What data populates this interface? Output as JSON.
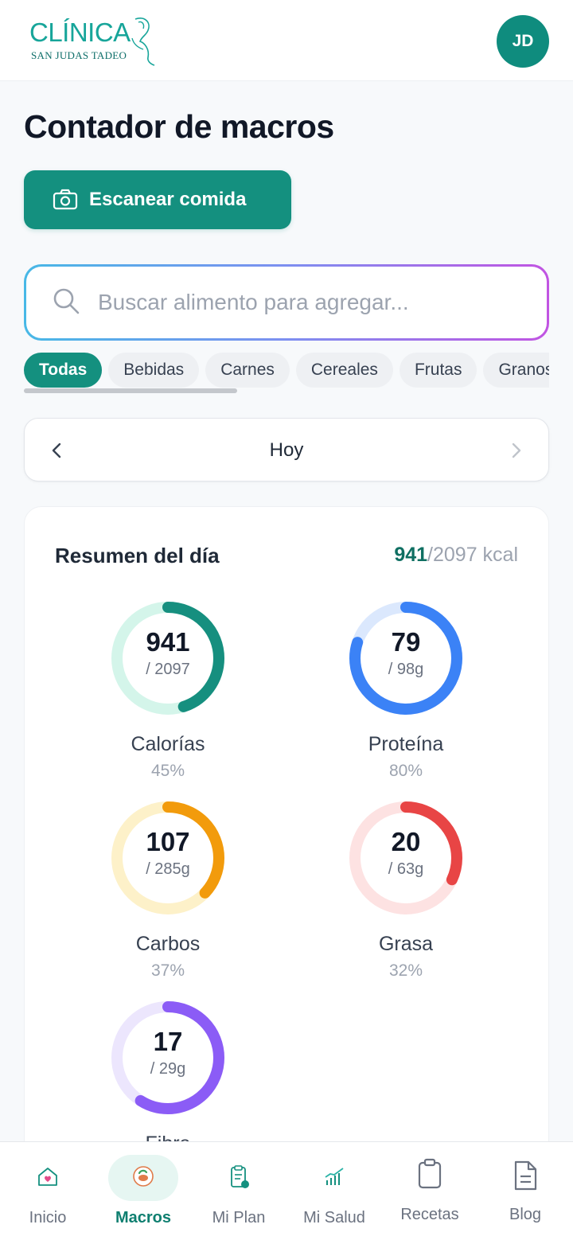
{
  "header": {
    "logo_main": "CLÍNICA",
    "logo_sub": "SAN JUDAS TADEO",
    "avatar_initials": "JD"
  },
  "page_title": "Contador de macros",
  "scan_button_label": "Escanear comida",
  "search": {
    "placeholder": "Buscar alimento para agregar..."
  },
  "categories": [
    {
      "label": "Todas",
      "active": true
    },
    {
      "label": "Bebidas",
      "active": false
    },
    {
      "label": "Carnes",
      "active": false
    },
    {
      "label": "Cereales",
      "active": false
    },
    {
      "label": "Frutas",
      "active": false
    },
    {
      "label": "Granos",
      "active": false
    }
  ],
  "date_nav": {
    "label": "Hoy"
  },
  "summary": {
    "title": "Resumen del día",
    "consumed": "941",
    "goal_text": "/2097 kcal"
  },
  "macros": [
    {
      "name": "Calorías",
      "value": "941",
      "goal": "/ 2097",
      "percent": "45%",
      "fraction": 0.45,
      "color": "#168f7f",
      "track": "#d4f5ea"
    },
    {
      "name": "Proteína",
      "value": "79",
      "goal": "/ 98g",
      "percent": "80%",
      "fraction": 0.8,
      "color": "#3b82f6",
      "track": "#dbe8fd"
    },
    {
      "name": "Carbos",
      "value": "107",
      "goal": "/ 285g",
      "percent": "37%",
      "fraction": 0.37,
      "color": "#f29b0c",
      "track": "#fdf1c9"
    },
    {
      "name": "Grasa",
      "value": "20",
      "goal": "/ 63g",
      "percent": "32%",
      "fraction": 0.32,
      "color": "#e84545",
      "track": "#fde2e2"
    },
    {
      "name": "Fibra",
      "value": "17",
      "goal": "/ 29g",
      "percent": "",
      "fraction": 0.59,
      "color": "#8b5cf6",
      "track": "#ece6fd"
    }
  ],
  "bottom_nav": [
    {
      "label": "Inicio",
      "icon": "home-heart-icon",
      "active": false
    },
    {
      "label": "Macros",
      "icon": "food-plate-icon",
      "active": true
    },
    {
      "label": "Mi Plan",
      "icon": "clipboard-plan-icon",
      "active": false
    },
    {
      "label": "Mi Salud",
      "icon": "health-chart-icon",
      "active": false
    },
    {
      "label": "Recetas",
      "icon": "clipboard-icon",
      "active": false
    },
    {
      "label": "Blog",
      "icon": "document-icon",
      "active": false
    }
  ]
}
